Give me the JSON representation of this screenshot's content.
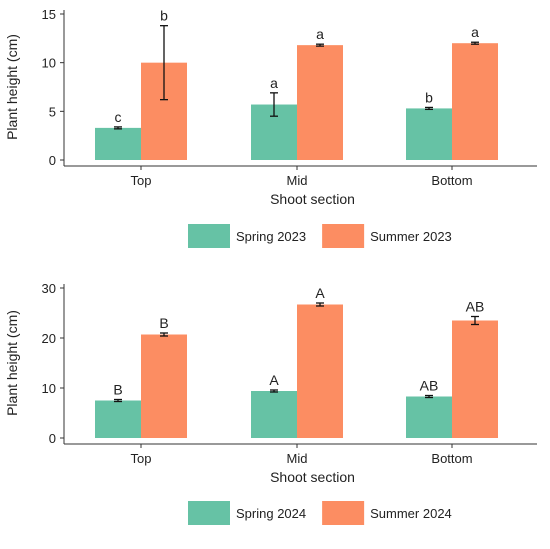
{
  "chart_data": [
    {
      "type": "bar",
      "categories": [
        "Top",
        "Mid",
        "Bottom"
      ],
      "xlabel": "Shoot section",
      "ylabel": "Plant height (cm)",
      "ylim": [
        0,
        15
      ],
      "yticks": [
        0,
        5,
        10,
        15
      ],
      "grid": false,
      "legend_position": "bottom",
      "series": [
        {
          "name": "Spring 2023",
          "color": "#66c2a5",
          "values": [
            3.3,
            5.7,
            5.3
          ],
          "errors": [
            0.1,
            1.2,
            0.1
          ],
          "letters": [
            "c",
            "a",
            "b"
          ]
        },
        {
          "name": "Summer 2023",
          "color": "#fc8d62",
          "values": [
            10.0,
            11.8,
            12.0
          ],
          "errors": [
            3.8,
            0.1,
            0.1
          ],
          "letters": [
            "b",
            "a",
            "a"
          ]
        }
      ]
    },
    {
      "type": "bar",
      "categories": [
        "Top",
        "Mid",
        "Bottom"
      ],
      "xlabel": "Shoot section",
      "ylabel": "Plant height (cm)",
      "ylim": [
        0,
        30
      ],
      "yticks": [
        0,
        10,
        20,
        30
      ],
      "grid": false,
      "legend_position": "bottom",
      "series": [
        {
          "name": "Spring 2024",
          "color": "#66c2a5",
          "values": [
            7.5,
            9.4,
            8.3
          ],
          "errors": [
            0.2,
            0.2,
            0.2
          ],
          "letters": [
            "B",
            "A",
            "AB"
          ]
        },
        {
          "name": "Summer 2024",
          "color": "#fc8d62",
          "values": [
            20.7,
            26.7,
            23.5
          ],
          "errors": [
            0.3,
            0.3,
            0.8
          ],
          "letters": [
            "B",
            "A",
            "AB"
          ]
        }
      ]
    }
  ]
}
